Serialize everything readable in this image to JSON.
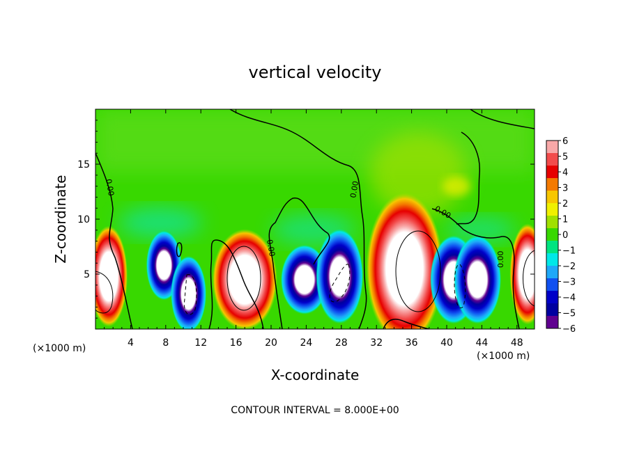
{
  "chart_data": {
    "type": "heatmap",
    "title": "vertical velocity",
    "xlabel": "X-coordinate",
    "ylabel": "Z-coordinate",
    "x_unit_left": "(×1000 m)",
    "x_unit_right": "(×1000 m)",
    "xlim": [
      0,
      50
    ],
    "ylim": [
      0,
      20
    ],
    "x_ticks": [
      4,
      8,
      12,
      16,
      20,
      24,
      28,
      32,
      36,
      40,
      44,
      48
    ],
    "y_ticks": [
      5,
      10,
      15
    ],
    "colorbar": {
      "min": -6,
      "max": 6,
      "ticks": [
        6,
        5,
        4,
        3,
        2,
        1,
        0,
        -1,
        -2,
        -3,
        -4,
        -5,
        -6
      ],
      "colors": [
        "#f8a8a8",
        "#f24b4b",
        "#e60000",
        "#f47a00",
        "#f7c600",
        "#f0f000",
        "#a0e000",
        "#38d800",
        "#00e480",
        "#00e8e8",
        "#1fa8f8",
        "#1050f0",
        "#0000c8",
        "#0000a0",
        "#600090"
      ]
    },
    "contour_interval_text": "CONTOUR INTERVAL = 8.000E+00",
    "contour_labels": [
      "0.00",
      "0.00",
      "0.00",
      "0.00",
      "0.00"
    ],
    "cells": [
      {
        "x": 1.5,
        "z": 4.8,
        "w": 3.2,
        "h": 8.0,
        "value": 9,
        "sign": "up"
      },
      {
        "x": 7.8,
        "z": 5.8,
        "w": 3.0,
        "h": 5.5,
        "value": -8,
        "sign": "down"
      },
      {
        "x": 10.6,
        "z": 3.2,
        "w": 3.0,
        "h": 6.0,
        "value": -10,
        "sign": "down"
      },
      {
        "x": 17.0,
        "z": 4.5,
        "w": 5.5,
        "h": 8.0,
        "value": 10,
        "sign": "up"
      },
      {
        "x": 23.8,
        "z": 4.5,
        "w": 4.0,
        "h": 5.5,
        "value": -8,
        "sign": "down"
      },
      {
        "x": 27.8,
        "z": 4.8,
        "w": 4.0,
        "h": 7.5,
        "value": -10,
        "sign": "down"
      },
      {
        "x": 35.2,
        "z": 5.5,
        "w": 6.5,
        "h": 12.0,
        "value": 11,
        "sign": "up"
      },
      {
        "x": 40.8,
        "z": 4.5,
        "w": 4.0,
        "h": 7.0,
        "value": -9,
        "sign": "down"
      },
      {
        "x": 43.5,
        "z": 4.5,
        "w": 4.0,
        "h": 7.0,
        "value": -9,
        "sign": "down"
      },
      {
        "x": 49.2,
        "z": 5.0,
        "w": 3.0,
        "h": 8.0,
        "value": 9,
        "sign": "up"
      }
    ]
  }
}
